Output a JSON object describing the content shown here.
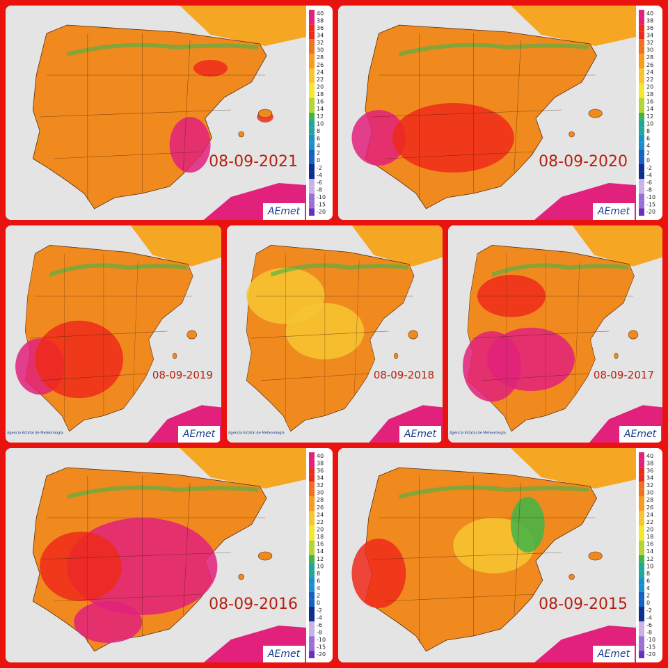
{
  "panels": [
    {
      "date": "08-09-2021"
    },
    {
      "date": "08-09-2020"
    },
    {
      "date": "08-09-2019"
    },
    {
      "date": "08-09-2018"
    },
    {
      "date": "08-09-2017"
    },
    {
      "date": "08-09-2016"
    },
    {
      "date": "08-09-2015"
    }
  ],
  "legend": {
    "labels": [
      "40",
      "38",
      "36",
      "34",
      "32",
      "30",
      "28",
      "26",
      "24",
      "22",
      "20",
      "18",
      "16",
      "14",
      "12",
      "10",
      "8",
      "6",
      "4",
      "2",
      "0",
      "-2",
      "-4",
      "-6",
      "-8",
      "-10",
      "-15",
      "-20"
    ]
  },
  "logo": {
    "name": "AEmet",
    "agency": "Agencia Estatal de Meteorología"
  }
}
